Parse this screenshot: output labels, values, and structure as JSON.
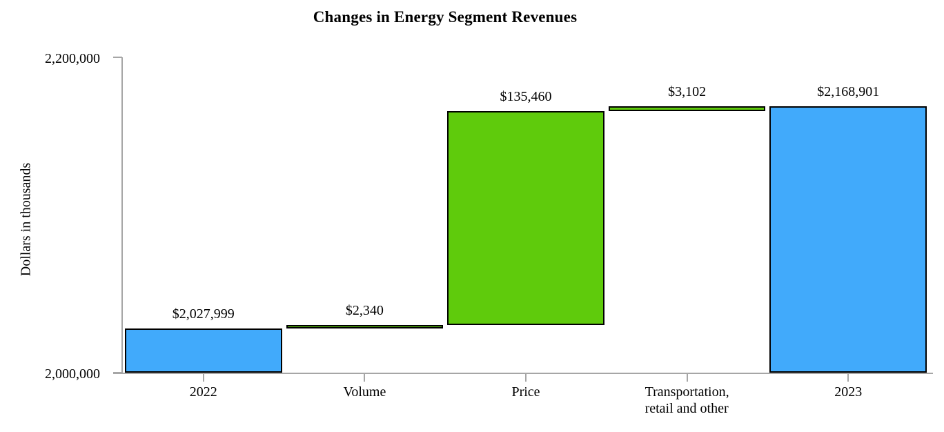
{
  "chart_data": {
    "type": "waterfall",
    "title": "Changes in Energy Segment Revenues",
    "ylabel": "Dollars in thousands",
    "xlabel": "",
    "ylim": [
      2000000,
      2200000
    ],
    "grid": false,
    "legend": false,
    "yticks": [
      {
        "value": 2200000,
        "label": "2,200,000"
      },
      {
        "value": 2000000,
        "label": "2,000,000"
      }
    ],
    "bars": [
      {
        "category": "2022",
        "value_label": "$2,027,999",
        "from": 2000000,
        "to": 2027999,
        "value": 2027999,
        "kind": "total"
      },
      {
        "category": "Volume",
        "value_label": "$2,340",
        "from": 2027999,
        "to": 2030339,
        "value": 2340,
        "kind": "delta"
      },
      {
        "category": "Price",
        "value_label": "$135,460",
        "from": 2030339,
        "to": 2165799,
        "value": 135460,
        "kind": "delta"
      },
      {
        "category": "Transportation,\nretail and other",
        "value_label": "$3,102",
        "from": 2165799,
        "to": 2168901,
        "value": 3102,
        "kind": "delta"
      },
      {
        "category": "2023",
        "value_label": "$2,168,901",
        "from": 2000000,
        "to": 2168901,
        "value": 2168901,
        "kind": "total"
      }
    ],
    "colors": {
      "total": "#41aafb",
      "delta": "#5fcb0c",
      "bar_border": "#000000",
      "axis": "#a6a6a6",
      "text": "#000000"
    }
  }
}
